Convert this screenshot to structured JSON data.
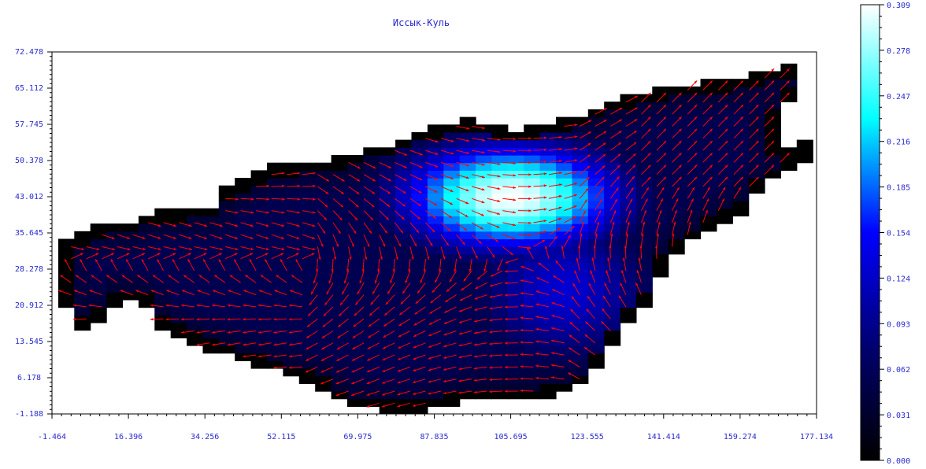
{
  "window": {
    "title": "Иссык-Куль"
  },
  "chart_data": {
    "type": "heatmap",
    "title": "Иссык-Куль",
    "xlabel": "",
    "ylabel": "",
    "x_ticks": [
      "-1.464",
      "16.396",
      "34.256",
      "52.115",
      "69.975",
      "87.835",
      "105.695",
      "123.555",
      "141.414",
      "159.274",
      "177.134"
    ],
    "y_ticks": [
      "72.478",
      "65.112",
      "57.745",
      "50.378",
      "43.012",
      "35.645",
      "28.278",
      "20.912",
      "13.545",
      "6.178",
      "-1.188"
    ],
    "xlim": [
      -1.464,
      177.134
    ],
    "ylim": [
      -1.188,
      72.478
    ],
    "colorbar": {
      "ticks": [
        "0.309",
        "0.278",
        "0.247",
        "0.216",
        "0.185",
        "0.154",
        "0.124",
        "0.093",
        "0.062",
        "0.031",
        "0.000"
      ],
      "range": [
        0.0,
        0.309
      ],
      "colors": [
        "#000000",
        "#000070",
        "#0000ff",
        "#00ffff",
        "#ffffff"
      ]
    },
    "peak": {
      "x": 105.7,
      "y": 43.0,
      "value": 0.309
    },
    "lake_outline": [
      [
        2,
        20
      ],
      [
        1,
        26
      ],
      [
        0,
        33
      ],
      [
        5,
        35
      ],
      [
        7,
        37
      ],
      [
        17,
        38
      ],
      [
        23,
        40
      ],
      [
        36,
        41
      ],
      [
        38,
        44
      ],
      [
        44,
        47
      ],
      [
        49,
        49
      ],
      [
        56,
        50
      ],
      [
        67,
        51
      ],
      [
        72,
        53
      ],
      [
        78,
        54
      ],
      [
        86,
        57
      ],
      [
        94,
        59
      ],
      [
        100,
        58
      ],
      [
        106,
        56
      ],
      [
        114,
        58
      ],
      [
        122,
        60
      ],
      [
        128,
        62
      ],
      [
        134,
        64
      ],
      [
        145,
        66
      ],
      [
        160,
        67
      ],
      [
        167,
        69
      ],
      [
        170,
        70
      ],
      [
        174,
        66
      ],
      [
        170,
        62
      ],
      [
        167,
        57
      ],
      [
        168,
        53
      ],
      [
        175,
        54
      ],
      [
        177,
        50
      ],
      [
        171,
        49
      ],
      [
        168,
        47
      ],
      [
        164,
        44
      ],
      [
        160,
        40
      ],
      [
        153,
        37
      ],
      [
        146,
        33
      ],
      [
        141,
        29
      ],
      [
        140,
        24
      ],
      [
        137,
        20
      ],
      [
        133,
        17
      ],
      [
        130,
        13
      ],
      [
        127,
        9
      ],
      [
        123,
        5
      ],
      [
        118,
        3
      ],
      [
        112,
        2
      ],
      [
        104,
        2
      ],
      [
        98,
        2
      ],
      [
        90,
        0
      ],
      [
        80,
        -1
      ],
      [
        72,
        0
      ],
      [
        66,
        1
      ],
      [
        60,
        5
      ],
      [
        52,
        7
      ],
      [
        42,
        10
      ],
      [
        32,
        13
      ],
      [
        24,
        16
      ],
      [
        20,
        21
      ],
      [
        14,
        22
      ],
      [
        10,
        17
      ],
      [
        5,
        16
      ]
    ],
    "arrow_color": "#ff0000",
    "flow_pattern": "wind-driven vector field: eastward along the northern shore, westward along the southern shore"
  }
}
